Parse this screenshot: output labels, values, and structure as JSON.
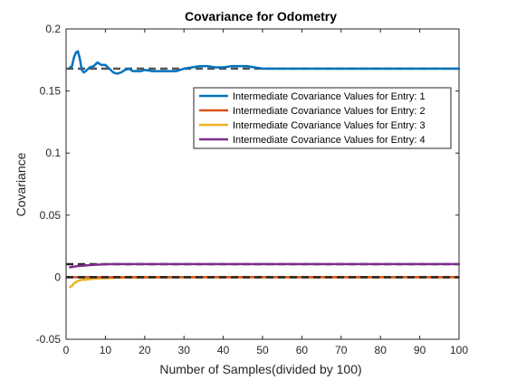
{
  "chart_data": {
    "type": "line",
    "title": "Covariance for Odometry",
    "xlabel": "Number of Samples(divided by 100)",
    "ylabel": "Covariance",
    "xlim": [
      0,
      100
    ],
    "ylim": [
      -0.05,
      0.2
    ],
    "xticks": [
      0,
      10,
      20,
      30,
      40,
      50,
      60,
      70,
      80,
      90,
      100
    ],
    "yticks": [
      -0.05,
      0,
      0.05,
      0.1,
      0.15,
      0.2
    ],
    "xtick_labels": [
      "0",
      "10",
      "20",
      "30",
      "40",
      "50",
      "60",
      "70",
      "80",
      "90",
      "100"
    ],
    "ytick_labels": [
      "-0.05",
      "0",
      "0.05",
      "0.1",
      "0.15",
      "0.2"
    ],
    "grid": false,
    "legend_position": "top-right",
    "reference_lines": [
      {
        "y": 0.168,
        "color": "#555555",
        "style": "dashed"
      },
      {
        "y": 0.0,
        "color": "#262626",
        "style": "dashed"
      },
      {
        "y": 0.0105,
        "color": "#262626",
        "style": "dashed"
      }
    ],
    "series": [
      {
        "name": "Intermediate Covariance Values for Entry: 1",
        "color": "#0072BD",
        "x": [
          1,
          1.5,
          2,
          2.5,
          3,
          3.5,
          4,
          4.5,
          5,
          6,
          7,
          8,
          9,
          10,
          11,
          12,
          13,
          14,
          15,
          16,
          17,
          18,
          19,
          20,
          22,
          24,
          26,
          28,
          30,
          32,
          34,
          36,
          38,
          40,
          42,
          44,
          46,
          48,
          50,
          55,
          60,
          65,
          70,
          75,
          80,
          85,
          90,
          95,
          100
        ],
        "y": [
          0.169,
          0.17,
          0.177,
          0.181,
          0.182,
          0.176,
          0.167,
          0.165,
          0.166,
          0.169,
          0.17,
          0.173,
          0.171,
          0.171,
          0.168,
          0.165,
          0.164,
          0.165,
          0.167,
          0.168,
          0.166,
          0.166,
          0.166,
          0.167,
          0.166,
          0.166,
          0.166,
          0.166,
          0.168,
          0.169,
          0.17,
          0.17,
          0.169,
          0.169,
          0.17,
          0.17,
          0.17,
          0.169,
          0.168,
          0.168,
          0.168,
          0.168,
          0.168,
          0.168,
          0.168,
          0.168,
          0.168,
          0.168,
          0.168
        ]
      },
      {
        "name": "Intermediate Covariance Values for Entry: 2",
        "color": "#D95319",
        "x": [
          1,
          2,
          3,
          5,
          10,
          20,
          30,
          50,
          70,
          100
        ],
        "y": [
          0,
          0,
          0,
          0,
          0,
          0,
          0,
          0,
          0,
          0
        ]
      },
      {
        "name": "Intermediate Covariance Values for Entry: 3",
        "color": "#EDB120",
        "x": [
          1,
          1.5,
          2,
          2.5,
          3,
          4,
          5,
          6,
          8,
          10,
          12,
          15,
          20,
          25,
          30,
          40,
          50,
          60,
          70,
          80,
          90,
          100
        ],
        "y": [
          -0.008,
          -0.007,
          -0.005,
          -0.004,
          -0.003,
          -0.002,
          -0.002,
          -0.0015,
          -0.001,
          -0.0008,
          -0.0005,
          -0.0003,
          -0.0002,
          -0.0001,
          0,
          0,
          0,
          0,
          0,
          0,
          0,
          0
        ]
      },
      {
        "name": "Intermediate Covariance Values for Entry: 4",
        "color": "#7E2F8E",
        "x": [
          1,
          2,
          3,
          4,
          5,
          6,
          8,
          10,
          12,
          15,
          20,
          30,
          40,
          50,
          60,
          70,
          80,
          90,
          100
        ],
        "y": [
          0.008,
          0.0085,
          0.009,
          0.0092,
          0.0095,
          0.0098,
          0.0101,
          0.0104,
          0.0106,
          0.0106,
          0.0106,
          0.0106,
          0.0106,
          0.0106,
          0.0106,
          0.0106,
          0.0106,
          0.0106,
          0.0106
        ]
      }
    ]
  }
}
